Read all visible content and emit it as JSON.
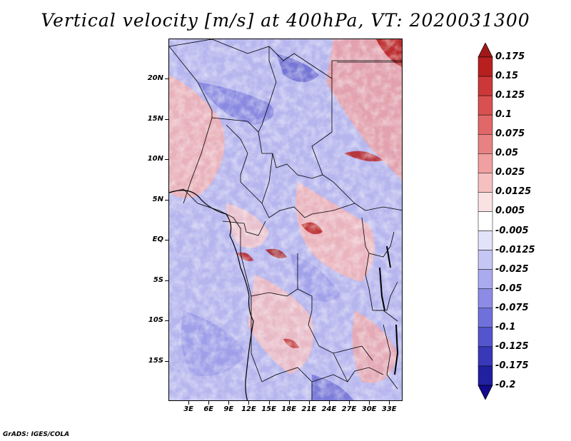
{
  "title": "Vertical velocity [m/s] at 400hPa, VT: 2020031300",
  "credit": "GrADS: IGES/COLA",
  "map": {
    "lat_labels": [
      "20N",
      "15N",
      "10N",
      "5N",
      "EQ",
      "5S",
      "10S",
      "15S"
    ],
    "lat_values": [
      20,
      15,
      10,
      5,
      0,
      -5,
      -10,
      -15
    ],
    "lon_labels": [
      "3E",
      "6E",
      "9E",
      "12E",
      "15E",
      "18E",
      "21E",
      "24E",
      "27E",
      "30E",
      "33E"
    ],
    "lon_values": [
      3,
      6,
      9,
      12,
      15,
      18,
      21,
      24,
      27,
      30,
      33
    ],
    "lon_range": [
      0,
      35
    ],
    "lat_range": [
      -20,
      25
    ]
  },
  "colorbar": {
    "labels": [
      "0.175",
      "0.15",
      "0.125",
      "0.1",
      "0.075",
      "0.05",
      "0.025",
      "0.0125",
      "0.005",
      "-0.005",
      "-0.0125",
      "-0.025",
      "-0.05",
      "-0.075",
      "-0.1",
      "-0.125",
      "-0.175",
      "-0.2"
    ],
    "colors": [
      "#a01818",
      "#b82020",
      "#cc3838",
      "#d85050",
      "#e06868",
      "#e88282",
      "#f0a0a0",
      "#f6c0c0",
      "#fbe2e2",
      "#ffffff",
      "#e2e2fb",
      "#c6c6f4",
      "#aaaaee",
      "#8c8ce6",
      "#7070dc",
      "#5454cc",
      "#3838b8",
      "#2020a0",
      "#140a8c"
    ],
    "orientation": "vertical",
    "arrows": "both"
  }
}
